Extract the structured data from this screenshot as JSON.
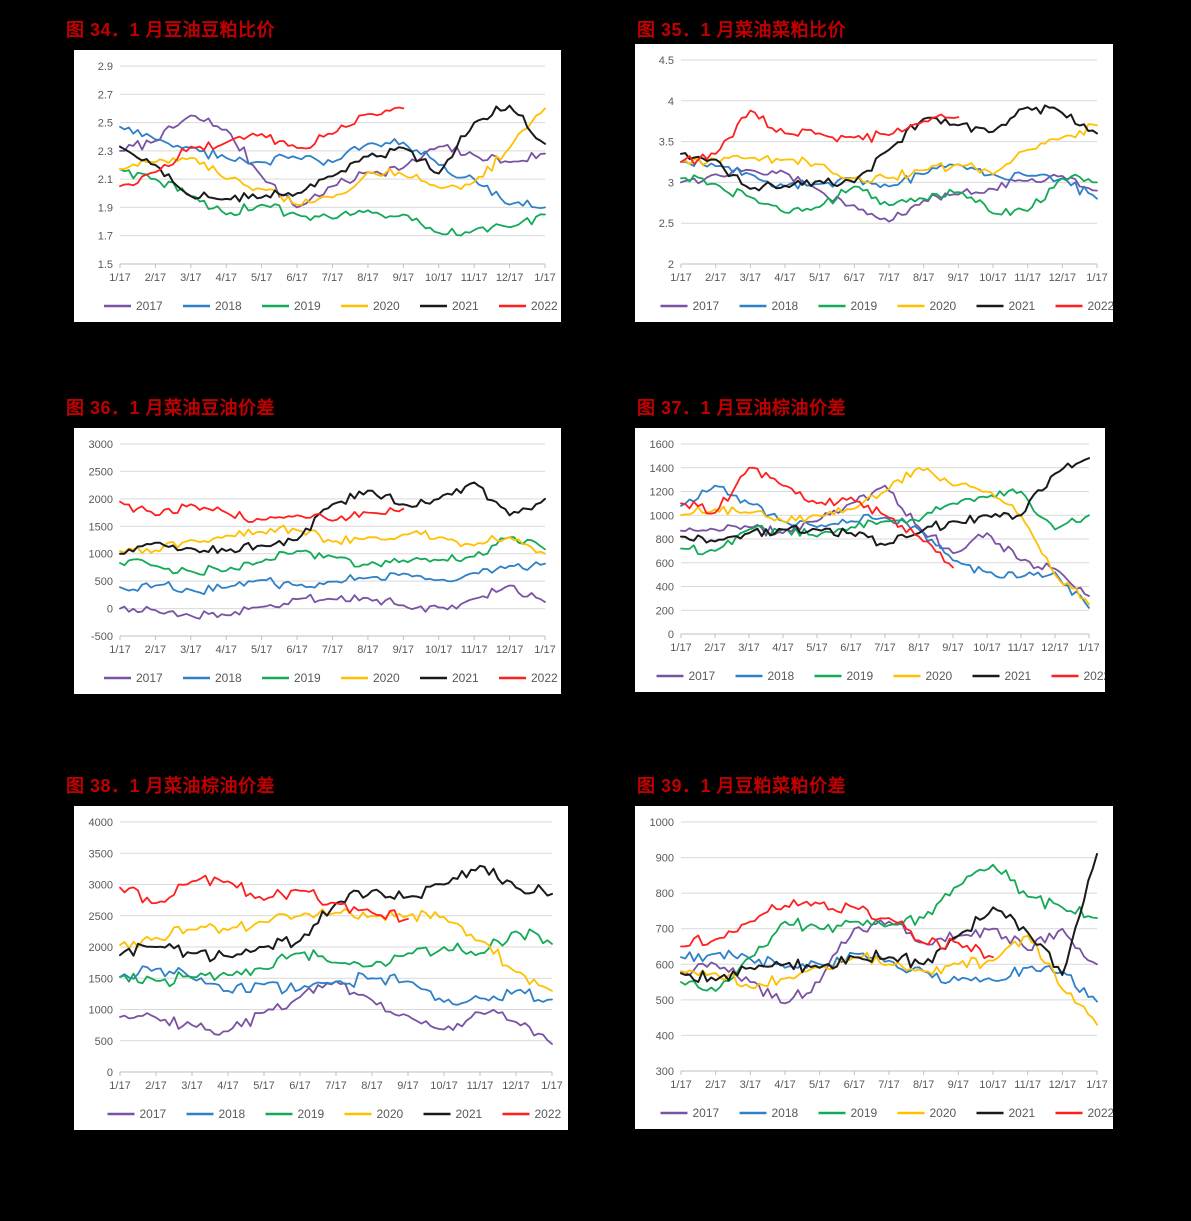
{
  "page": {
    "background": "#000000",
    "title_color": "#C00000",
    "panel_background": "#FFFFFF"
  },
  "palette": {
    "2017": "#7A52A3",
    "2018": "#2E80C8",
    "2019": "#12A957",
    "2020": "#FFC000",
    "2021": "#1A1A1A",
    "2022": "#FF1F1F"
  },
  "axis_style": {
    "tick_color": "#595959",
    "grid_color": "#D9D9D9",
    "axis_line_color": "#BFBFBF"
  },
  "chart_data": [
    {
      "type": "line",
      "title": "图 34．1 月豆油豆粕比价",
      "x": [
        "1/17",
        "2/17",
        "3/17",
        "4/17",
        "5/17",
        "6/17",
        "7/17",
        "8/17",
        "9/17",
        "10/17",
        "11/17",
        "12/17",
        "1/17"
      ],
      "ylim": [
        1.5,
        2.9
      ],
      "ystep": 0.2,
      "grid": "horizontal",
      "legend_position": "bottom",
      "series": [
        {
          "name": "2017",
          "values": [
            2.3,
            2.37,
            2.55,
            2.45,
            2.12,
            1.9,
            2.05,
            2.15,
            2.18,
            2.33,
            2.27,
            2.22,
            2.28
          ]
        },
        {
          "name": "2018",
          "values": [
            2.47,
            2.38,
            2.32,
            2.25,
            2.22,
            2.25,
            2.22,
            2.35,
            2.36,
            2.2,
            2.1,
            1.92,
            1.9
          ]
        },
        {
          "name": "2019",
          "values": [
            2.17,
            2.1,
            1.98,
            1.85,
            1.92,
            1.85,
            1.82,
            1.88,
            1.85,
            1.72,
            1.74,
            1.76,
            1.85
          ]
        },
        {
          "name": "2020",
          "values": [
            2.17,
            2.22,
            2.25,
            2.1,
            2.03,
            1.92,
            1.97,
            2.15,
            2.13,
            2.04,
            2.08,
            2.32,
            2.6
          ]
        },
        {
          "name": "2021",
          "values": [
            2.33,
            2.2,
            1.98,
            1.96,
            1.97,
            2.0,
            2.12,
            2.26,
            2.32,
            2.14,
            2.5,
            2.62,
            2.35
          ]
        },
        {
          "name": "2022",
          "values": [
            2.05,
            2.15,
            2.33,
            2.36,
            2.42,
            2.32,
            2.42,
            2.56,
            2.6,
            null,
            null,
            null,
            null
          ]
        }
      ]
    },
    {
      "type": "line",
      "title": "图 35．1 月菜油菜粕比价",
      "x": [
        "1/17",
        "2/17",
        "3/17",
        "4/17",
        "5/17",
        "6/17",
        "7/17",
        "8/17",
        "9/17",
        "10/17",
        "11/17",
        "12/17",
        "1/17"
      ],
      "ylim": [
        2,
        4.5
      ],
      "ystep": 0.5,
      "grid": "horizontal",
      "legend_position": "bottom",
      "series": [
        {
          "name": "2017",
          "values": [
            3.0,
            3.1,
            3.15,
            3.12,
            2.9,
            2.72,
            2.52,
            2.78,
            2.85,
            2.92,
            3.02,
            3.08,
            2.9
          ]
        },
        {
          "name": "2018",
          "values": [
            3.25,
            3.2,
            3.1,
            2.95,
            2.98,
            3.05,
            2.95,
            3.1,
            3.22,
            3.1,
            3.08,
            3.05,
            2.8
          ]
        },
        {
          "name": "2019",
          "values": [
            3.05,
            2.98,
            2.82,
            2.63,
            2.7,
            2.95,
            2.72,
            2.8,
            2.88,
            2.62,
            2.65,
            3.05,
            3.0
          ]
        },
        {
          "name": "2020",
          "values": [
            3.25,
            3.28,
            3.3,
            3.28,
            3.22,
            3.05,
            3.05,
            3.15,
            3.22,
            3.1,
            3.4,
            3.55,
            3.7
          ]
        },
        {
          "name": "2021",
          "values": [
            3.35,
            3.28,
            2.92,
            2.96,
            3.02,
            3.0,
            3.4,
            3.78,
            3.7,
            3.62,
            3.92,
            3.85,
            3.6
          ]
        },
        {
          "name": "2022",
          "values": [
            3.25,
            3.35,
            3.88,
            3.6,
            3.6,
            3.55,
            3.58,
            3.75,
            3.8,
            null,
            null,
            null,
            null
          ]
        }
      ]
    },
    {
      "type": "line",
      "title": "图 36．1 月菜油豆油价差",
      "x": [
        "1/17",
        "2/17",
        "3/17",
        "4/17",
        "5/17",
        "6/17",
        "7/17",
        "8/17",
        "9/17",
        "10/17",
        "11/17",
        "12/17",
        "1/17"
      ],
      "ylim": [
        -500,
        3000
      ],
      "ystep": 500,
      "grid": "horizontal",
      "legend_position": "bottom",
      "series": [
        {
          "name": "2017",
          "values": [
            0,
            -30,
            -130,
            -120,
            30,
            170,
            170,
            190,
            60,
            20,
            180,
            420,
            120
          ]
        },
        {
          "name": "2018",
          "values": [
            390,
            420,
            340,
            380,
            520,
            420,
            490,
            560,
            640,
            520,
            650,
            780,
            820
          ]
        },
        {
          "name": "2019",
          "values": [
            830,
            780,
            680,
            690,
            850,
            1050,
            950,
            800,
            880,
            880,
            950,
            1300,
            1080
          ]
        },
        {
          "name": "2020",
          "values": [
            1050,
            1060,
            1250,
            1330,
            1400,
            1430,
            1220,
            1300,
            1350,
            1300,
            1150,
            1300,
            1000
          ]
        },
        {
          "name": "2021",
          "values": [
            1000,
            1200,
            1100,
            1050,
            1150,
            1250,
            1900,
            2150,
            1900,
            2000,
            2300,
            1700,
            2000
          ]
        },
        {
          "name": "2022",
          "values": [
            1950,
            1700,
            1900,
            1750,
            1620,
            1700,
            1600,
            1750,
            1820,
            null,
            null,
            null,
            null
          ]
        }
      ]
    },
    {
      "type": "line",
      "title": "图 37．1 月豆油棕油价差",
      "x": [
        "1/17",
        "2/17",
        "3/17",
        "4/17",
        "5/17",
        "6/17",
        "7/17",
        "8/17",
        "9/17",
        "10/17",
        "11/17",
        "12/17",
        "1/17"
      ],
      "ylim": [
        0,
        1600
      ],
      "ystep": 200,
      "grid": "horizontal",
      "legend_position": "bottom",
      "series": [
        {
          "name": "2017",
          "values": [
            870,
            880,
            900,
            850,
            950,
            1100,
            1250,
            900,
            680,
            850,
            620,
            550,
            320
          ]
        },
        {
          "name": "2018",
          "values": [
            1080,
            1250,
            1100,
            950,
            900,
            950,
            980,
            880,
            620,
            520,
            480,
            520,
            220
          ]
        },
        {
          "name": "2019",
          "values": [
            720,
            700,
            880,
            880,
            820,
            900,
            950,
            950,
            1100,
            1150,
            1200,
            880,
            1000
          ]
        },
        {
          "name": "2020",
          "values": [
            1000,
            1050,
            1020,
            950,
            1000,
            1050,
            1200,
            1400,
            1250,
            1200,
            1000,
            500,
            250
          ]
        },
        {
          "name": "2021",
          "values": [
            820,
            780,
            850,
            880,
            880,
            850,
            750,
            850,
            950,
            1000,
            1000,
            1350,
            1480
          ]
        },
        {
          "name": "2022",
          "values": [
            1100,
            1020,
            1400,
            1250,
            1100,
            1150,
            1000,
            820,
            560,
            null,
            null,
            null,
            null
          ]
        }
      ]
    },
    {
      "type": "line",
      "title": "图 38．1 月菜油棕油价差",
      "x": [
        "1/17",
        "2/17",
        "3/17",
        "4/17",
        "5/17",
        "6/17",
        "7/17",
        "8/17",
        "9/17",
        "10/17",
        "11/17",
        "12/17",
        "1/17"
      ],
      "ylim": [
        0,
        4000
      ],
      "ystep": 500,
      "grid": "horizontal",
      "legend_position": "bottom",
      "series": [
        {
          "name": "2017",
          "values": [
            880,
            870,
            750,
            650,
            950,
            1200,
            1450,
            1150,
            900,
            680,
            950,
            800,
            450
          ]
        },
        {
          "name": "2018",
          "values": [
            1520,
            1650,
            1500,
            1300,
            1400,
            1320,
            1450,
            1500,
            1450,
            1120,
            1180,
            1300,
            1160
          ]
        },
        {
          "name": "2019",
          "values": [
            1520,
            1460,
            1520,
            1550,
            1650,
            1900,
            1750,
            1700,
            1900,
            2000,
            1900,
            2250,
            2050
          ]
        },
        {
          "name": "2020",
          "values": [
            2030,
            2150,
            2280,
            2270,
            2400,
            2500,
            2550,
            2500,
            2500,
            2480,
            2100,
            1600,
            1300
          ]
        },
        {
          "name": "2021",
          "values": [
            1870,
            2000,
            1900,
            1850,
            2000,
            2100,
            2700,
            2900,
            2800,
            3000,
            3300,
            2950,
            2850
          ]
        },
        {
          "name": "2022",
          "values": [
            2950,
            2700,
            3050,
            3050,
            2750,
            2900,
            2700,
            2550,
            2450,
            null,
            null,
            null,
            null
          ]
        }
      ]
    },
    {
      "type": "line",
      "title": "图 39．1 月豆粕菜粕价差",
      "x": [
        "1/17",
        "2/17",
        "3/17",
        "4/17",
        "5/17",
        "6/17",
        "7/17",
        "8/17",
        "9/17",
        "10/17",
        "11/17",
        "12/17",
        "1/17"
      ],
      "ylim": [
        300,
        1000
      ],
      "ystep": 100,
      "grid": "horizontal",
      "legend_position": "bottom",
      "series": [
        {
          "name": "2017",
          "values": [
            580,
            600,
            550,
            490,
            550,
            700,
            720,
            660,
            680,
            700,
            640,
            700,
            600
          ]
        },
        {
          "name": "2018",
          "values": [
            620,
            630,
            615,
            590,
            600,
            630,
            610,
            580,
            555,
            555,
            590,
            580,
            495
          ]
        },
        {
          "name": "2019",
          "values": [
            550,
            525,
            620,
            720,
            700,
            720,
            710,
            730,
            820,
            880,
            790,
            760,
            730
          ]
        },
        {
          "name": "2020",
          "values": [
            580,
            575,
            535,
            560,
            590,
            620,
            600,
            580,
            600,
            610,
            680,
            530,
            430
          ]
        },
        {
          "name": "2021",
          "values": [
            575,
            555,
            590,
            600,
            590,
            620,
            620,
            600,
            680,
            760,
            690,
            570,
            910
          ]
        },
        {
          "name": "2022",
          "values": [
            650,
            670,
            720,
            765,
            770,
            760,
            730,
            660,
            660,
            620,
            null,
            null,
            null
          ]
        }
      ]
    }
  ]
}
